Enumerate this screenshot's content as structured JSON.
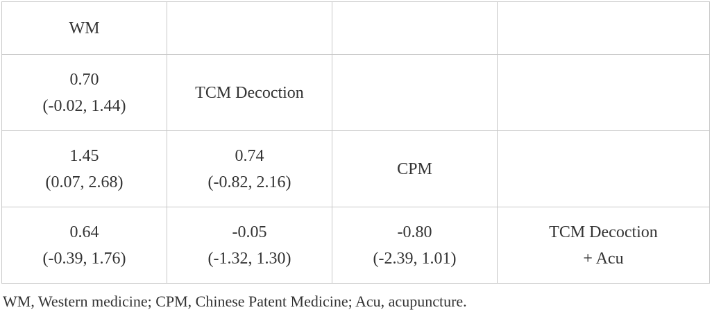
{
  "table": {
    "rows": [
      [
        [
          "WM"
        ],
        null,
        null,
        null
      ],
      [
        [
          "0.70",
          "(-0.02, 1.44)"
        ],
        [
          "TCM Decoction"
        ],
        null,
        null
      ],
      [
        [
          "1.45",
          "(0.07, 2.68)"
        ],
        [
          "0.74",
          "(-0.82, 2.16)"
        ],
        [
          "CPM"
        ],
        null
      ],
      [
        [
          "0.64",
          "(-0.39, 1.76)"
        ],
        [
          "-0.05",
          "(-1.32, 1.30)"
        ],
        [
          "-0.80",
          "(-2.39, 1.01)"
        ],
        [
          "TCM Decoction",
          "+ Acu"
        ]
      ]
    ]
  },
  "footnote": "WM, Western medicine; CPM, Chinese Patent Medicine; Acu, acupuncture."
}
